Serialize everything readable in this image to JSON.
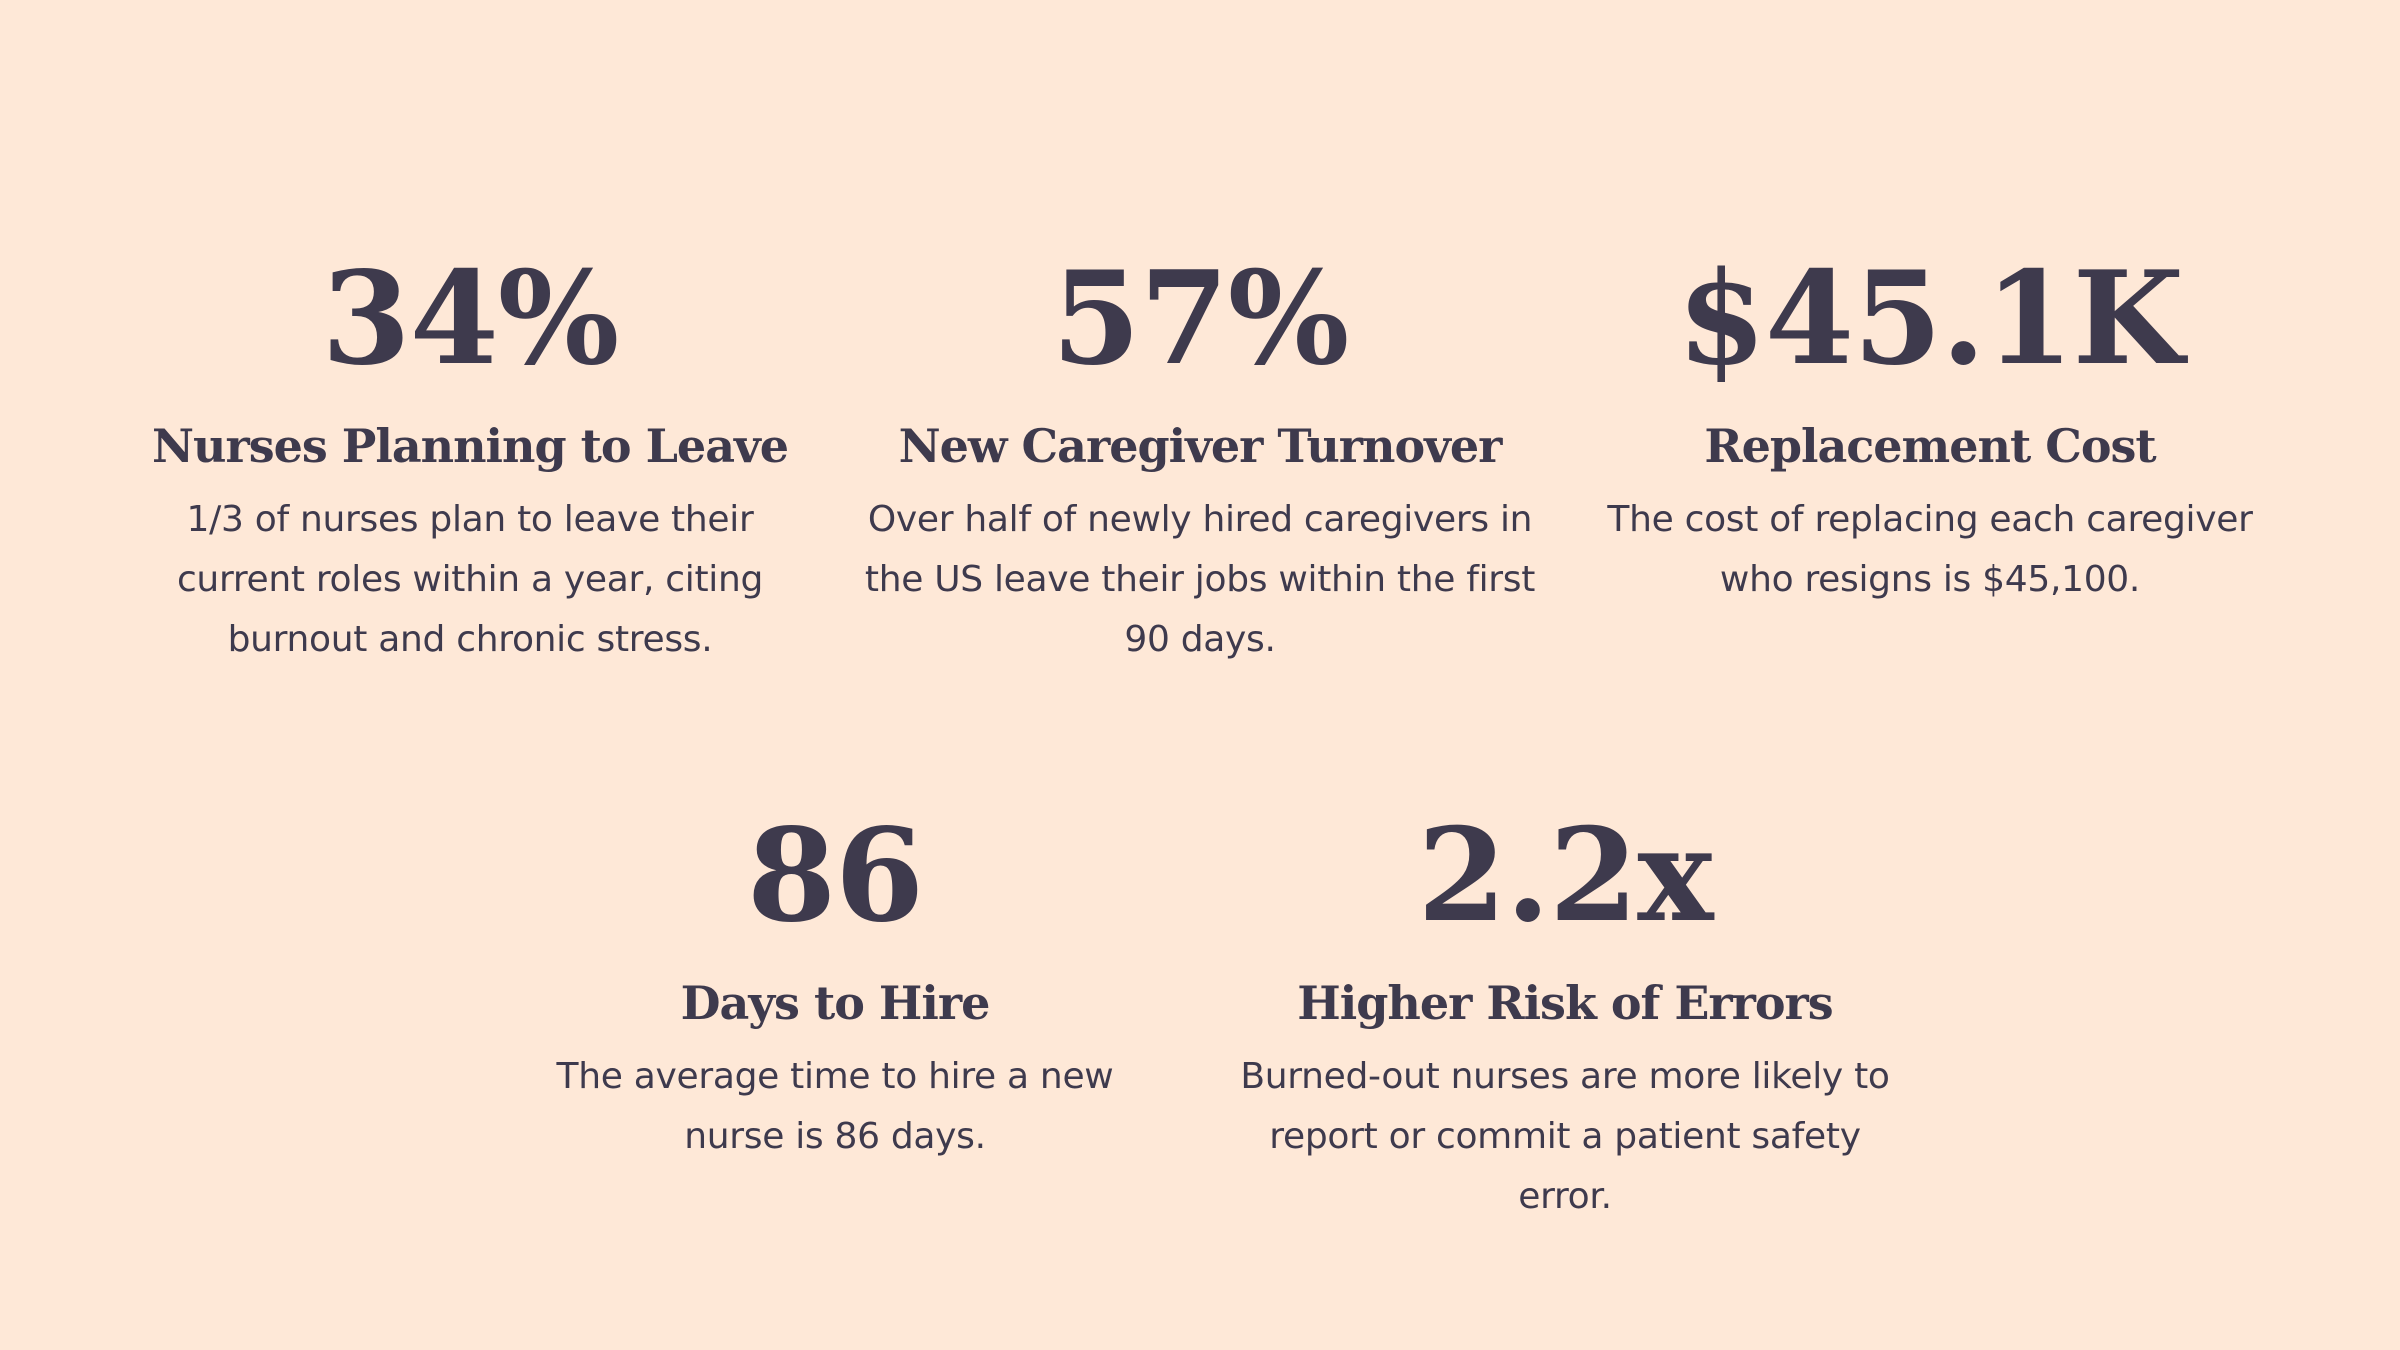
{
  "stats": [
    {
      "value": "34%",
      "title": "Nurses Planning to Leave",
      "description": "1/3 of nurses plan to leave their current roles within a year, citing burnout and chronic stress."
    },
    {
      "value": "57%",
      "title": "New Caregiver Turnover",
      "description": "Over half of newly hired caregivers in the US leave their jobs within the first 90 days."
    },
    {
      "value": "$45.1K",
      "title": "Replacement Cost",
      "description": "The cost of replacing each caregiver who resigns is $45,100."
    },
    {
      "value": "86",
      "title": "Days to Hire",
      "description": "The average time to hire a new nurse is 86 days."
    },
    {
      "value": "2.2x",
      "title": "Higher Risk of  Errors",
      "description": "Burned-out nurses are more likely to report or commit a patient safety error."
    }
  ],
  "colors": {
    "background": "#FEE8D7",
    "text": "#3E3A4D"
  }
}
